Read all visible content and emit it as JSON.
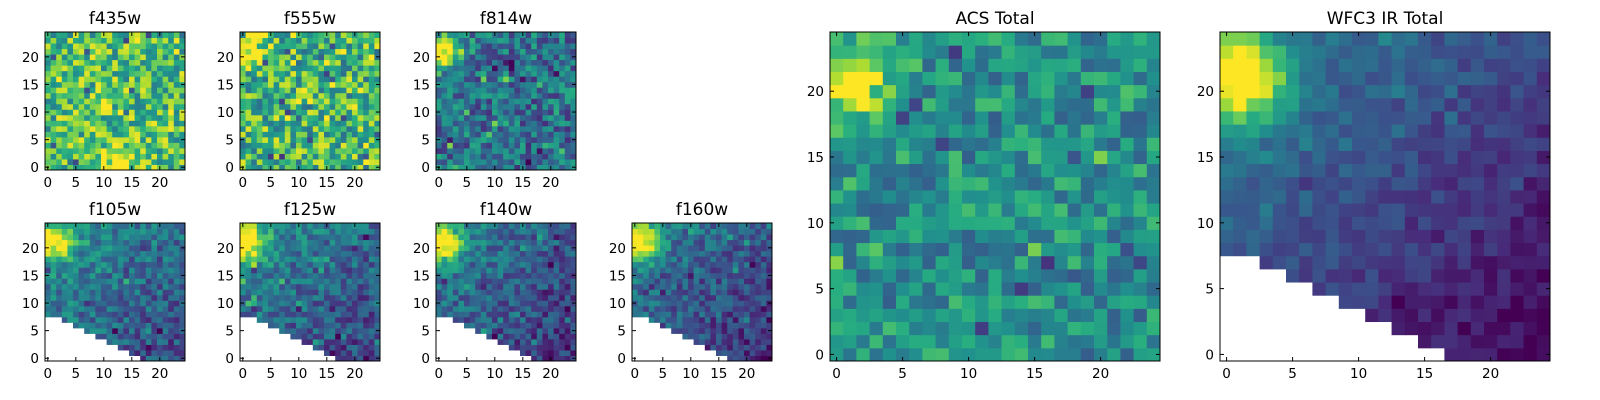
{
  "chart_data": {
    "type": "heatmap",
    "colormap": "viridis",
    "grid": false,
    "cmap_stops": [
      "#440154",
      "#472c7a",
      "#3b518b",
      "#2c718e",
      "#21908d",
      "#27ad81",
      "#5cc863",
      "#aadc32",
      "#fde725"
    ],
    "panels": [
      {
        "id": "f435w",
        "title": "f435w",
        "xticks": [
          0,
          5,
          10,
          15,
          20
        ],
        "yticks": [
          0,
          5,
          10,
          15,
          20
        ],
        "xlim": [
          -0.5,
          24.5
        ],
        "ylim": [
          -0.5,
          24.5
        ],
        "masked_region": "none",
        "bright_spot_xy": [
          12,
          0
        ]
      },
      {
        "id": "f555w",
        "title": "f555w",
        "xticks": [
          0,
          5,
          10,
          15,
          20
        ],
        "yticks": [
          0,
          5,
          10,
          15,
          20
        ],
        "xlim": [
          -0.5,
          24.5
        ],
        "ylim": [
          -0.5,
          24.5
        ],
        "masked_region": "none",
        "bright_spot_xy": [
          1,
          22
        ]
      },
      {
        "id": "f814w",
        "title": "f814w",
        "xticks": [
          0,
          5,
          10,
          15,
          20
        ],
        "yticks": [
          0,
          5,
          10,
          15,
          20
        ],
        "xlim": [
          -0.5,
          24.5
        ],
        "ylim": [
          -0.5,
          24.5
        ],
        "masked_region": "none",
        "bright_spot_xy": [
          1,
          21
        ]
      },
      {
        "id": "f105w",
        "title": "f105w",
        "xticks": [
          0,
          5,
          10,
          15,
          20
        ],
        "yticks": [
          0,
          5,
          10,
          15,
          20
        ],
        "xlim": [
          -0.5,
          24.5
        ],
        "ylim": [
          -0.5,
          24.5
        ],
        "masked_region": "lower-left triangle",
        "bright_spot_xy": [
          1,
          21
        ]
      },
      {
        "id": "f125w",
        "title": "f125w",
        "xticks": [
          0,
          5,
          10,
          15,
          20
        ],
        "yticks": [
          0,
          5,
          10,
          15,
          20
        ],
        "xlim": [
          -0.5,
          24.5
        ],
        "ylim": [
          -0.5,
          24.5
        ],
        "masked_region": "lower-left triangle",
        "bright_spot_xy": [
          1,
          21
        ]
      },
      {
        "id": "f140w",
        "title": "f140w",
        "xticks": [
          0,
          5,
          10,
          15,
          20
        ],
        "yticks": [
          0,
          5,
          10,
          15,
          20
        ],
        "xlim": [
          -0.5,
          24.5
        ],
        "ylim": [
          -0.5,
          24.5
        ],
        "masked_region": "lower-left triangle",
        "bright_spot_xy": [
          1,
          21
        ]
      },
      {
        "id": "f160w",
        "title": "f160w",
        "xticks": [
          0,
          5,
          10,
          15,
          20
        ],
        "yticks": [
          0,
          5,
          10,
          15,
          20
        ],
        "xlim": [
          -0.5,
          24.5
        ],
        "ylim": [
          -0.5,
          24.5
        ],
        "masked_region": "lower-left triangle",
        "bright_spot_xy": [
          1,
          21
        ]
      },
      {
        "id": "acs_total",
        "title": "ACS Total",
        "xticks": [
          0,
          5,
          10,
          15,
          20
        ],
        "yticks": [
          0,
          5,
          10,
          15,
          20
        ],
        "xlim": [
          -0.5,
          24.5
        ],
        "ylim": [
          -0.5,
          24.5
        ],
        "masked_region": "none",
        "bright_spot_xy": [
          1,
          21
        ]
      },
      {
        "id": "wfc3_ir_total",
        "title": "WFC3 IR Total",
        "xticks": [
          0,
          5,
          10,
          15,
          20
        ],
        "yticks": [
          0,
          5,
          10,
          15,
          20
        ],
        "xlim": [
          -0.5,
          24.5
        ],
        "ylim": [
          -0.5,
          24.5
        ],
        "masked_region": "lower-left triangle",
        "bright_spot_xy": [
          1,
          21
        ]
      }
    ]
  }
}
